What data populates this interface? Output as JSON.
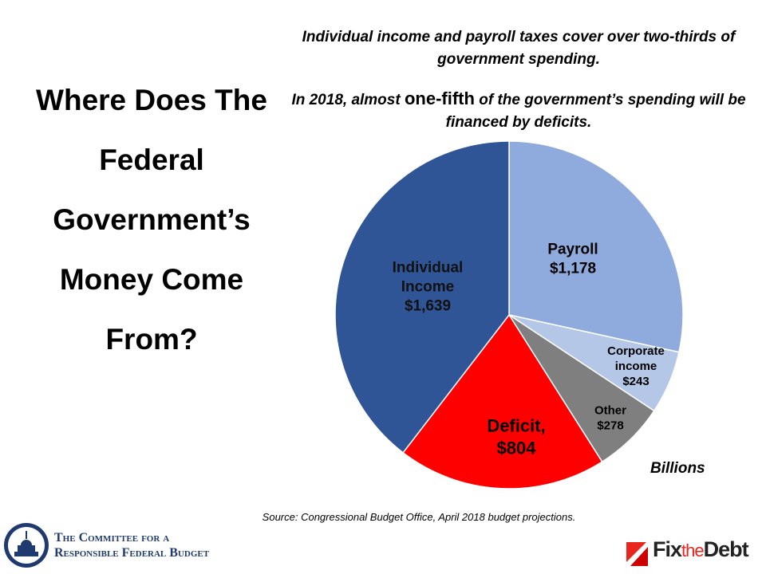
{
  "chart_data": {
    "type": "pie",
    "title": "Where Does The Federal Government’s Money Come From?",
    "subtitle": "Individual income and payroll taxes cover over two-thirds of government spending.",
    "subtitle2": {
      "before": "In 2018, almost ",
      "highlight": "one-fifth",
      "after": " of the government’s spending will be financed by deficits."
    },
    "categories": [
      "Payroll",
      "Corporate income",
      "Other",
      "Deficit,",
      "Individual Income"
    ],
    "values": [
      1178,
      243,
      278,
      804,
      1639
    ],
    "value_labels": [
      "$1,178",
      "$243",
      "$278",
      "$804",
      "$1,639"
    ],
    "colors": [
      "#8faadc",
      "#b4c7e7",
      "#7f7f7f",
      "#ff0000",
      "#2f5597"
    ],
    "unit_note": "Billions",
    "source": "Source: Congressional Budget Office, April 2018 budget projections."
  },
  "logos": {
    "crfb_line1": "The Committee for a",
    "crfb_line2": "Responsible Federal Budget",
    "ftd": [
      "Fix",
      "the",
      "Debt"
    ]
  }
}
